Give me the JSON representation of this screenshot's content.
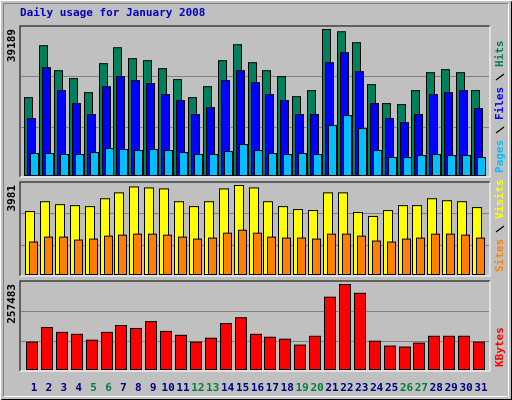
{
  "chart_data": [
    {
      "type": "bar",
      "title": "Daily usage for January 2008",
      "title_color": "#0000c0",
      "ylim": [
        0,
        39189
      ],
      "yticks": [
        39189
      ],
      "series": [
        {
          "name": "Hits",
          "color": "#00805c",
          "values": [
            20900,
            34840,
            28140,
            26000,
            22240,
            30020,
            34300,
            31360,
            30820,
            28680,
            25730,
            20900,
            23850,
            30820,
            35110,
            30280,
            28140,
            26530,
            21170,
            22780,
            39189,
            38590,
            35640,
            24390,
            19300,
            19030,
            22780,
            27600,
            28410,
            27600,
            22780
          ]
        },
        {
          "name": "Files",
          "color": "#0000ff",
          "values": [
            15280,
            28940,
            22780,
            19300,
            16350,
            23850,
            26530,
            25460,
            24660,
            21710,
            20100,
            16350,
            18220,
            25460,
            28140,
            24920,
            21710,
            20100,
            16350,
            16350,
            30280,
            32960,
            27870,
            19300,
            15280,
            14200,
            16350,
            21710,
            22240,
            22780,
            17960
          ]
        },
        {
          "name": "Pages",
          "color": "#00c0ff",
          "values": [
            5900,
            5900,
            5630,
            5630,
            6160,
            7240,
            6970,
            6700,
            6970,
            6700,
            6160,
            5630,
            5630,
            6430,
            8310,
            6700,
            5900,
            5630,
            5900,
            5630,
            13400,
            16080,
            12600,
            6700,
            4820,
            4820,
            5360,
            5630,
            5360,
            5360,
            4820
          ]
        }
      ]
    },
    {
      "type": "bar",
      "ylim": [
        0,
        3981
      ],
      "yticks": [
        3981
      ],
      "series": [
        {
          "name": "Visits",
          "color": "#ffff00",
          "values": [
            2816,
            3256,
            3124,
            3080,
            3036,
            3388,
            3652,
            3916,
            3872,
            3828,
            3256,
            3036,
            3256,
            3828,
            3981,
            3872,
            3256,
            3036,
            2904,
            2860,
            3652,
            3652,
            2772,
            2596,
            2860,
            3080,
            3080,
            3388,
            3300,
            3256,
            2992
          ]
        },
        {
          "name": "Sites",
          "color": "#ff8000",
          "values": [
            1452,
            1672,
            1672,
            1540,
            1584,
            1716,
            1760,
            1804,
            1804,
            1760,
            1672,
            1584,
            1628,
            1848,
            1980,
            1848,
            1672,
            1628,
            1628,
            1584,
            1804,
            1804,
            1716,
            1496,
            1452,
            1584,
            1628,
            1804,
            1804,
            1760,
            1628
          ]
        }
      ]
    },
    {
      "type": "bar",
      "ylim": [
        0,
        257483
      ],
      "yticks": [
        257483
      ],
      "categories": [
        "1",
        "2",
        "3",
        "4",
        "5",
        "6",
        "7",
        "8",
        "9",
        "10",
        "11",
        "12",
        "13",
        "14",
        "15",
        "16",
        "17",
        "18",
        "19",
        "20",
        "21",
        "22",
        "23",
        "24",
        "25",
        "26",
        "27",
        "28",
        "29",
        "30",
        "31"
      ],
      "category_colors": [
        "#000080",
        "#000080",
        "#000080",
        "#000080",
        "#008040",
        "#008040",
        "#000080",
        "#000080",
        "#000080",
        "#000080",
        "#000080",
        "#008040",
        "#008040",
        "#000080",
        "#000080",
        "#000080",
        "#000080",
        "#000080",
        "#008040",
        "#008040",
        "#000080",
        "#000080",
        "#000080",
        "#000080",
        "#000080",
        "#008040",
        "#008040",
        "#000080",
        "#000080",
        "#000080",
        "#000080"
      ],
      "series": [
        {
          "name": "KBytes",
          "color": "#ff0000",
          "values": [
            82880,
            127280,
            112480,
            106560,
            88800,
            112480,
            133200,
            124320,
            145040,
            115440,
            103600,
            82880,
            94720,
            139120,
            156880,
            106560,
            97680,
            91760,
            74000,
            100640,
            219040,
            257483,
            230880,
            85840,
            71040,
            68080,
            79920,
            100640,
            100640,
            100640,
            82880
          ]
        }
      ]
    }
  ]
}
